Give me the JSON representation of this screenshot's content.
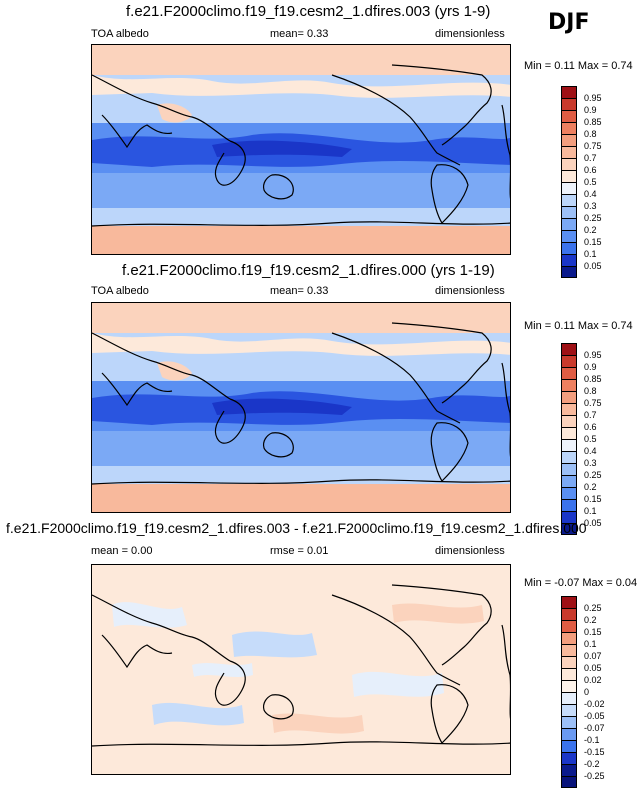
{
  "season": "DJF",
  "palette_abs": [
    "#0a1a8c",
    "#1a36c8",
    "#2a55e0",
    "#3b73ec",
    "#5a8ff2",
    "#7ba9f5",
    "#9cc0f7",
    "#bcd6fa",
    "#d6e6fb",
    "#eef3fb",
    "#fde9da",
    "#fbd3bd",
    "#f8b99c",
    "#f39e7e",
    "#ee8060",
    "#e05d44",
    "#c93a2c",
    "#9e1015"
  ],
  "palette_diff": [
    "#0a1a8c",
    "#1a36c8",
    "#3b73ec",
    "#6a9af2",
    "#9cc0f7",
    "#c6dcfa",
    "#e6effb",
    "#fde9da",
    "#fbd3bd",
    "#f8b99c",
    "#f39e7e",
    "#e05d44",
    "#c93a2c",
    "#9e1015"
  ],
  "panels": [
    {
      "title": "f.e21.F2000climo.f19_f19.cesm2_1.dfires.003 (yrs 1-9)",
      "left_label": "TOA albedo",
      "center_label": "mean=  0.33",
      "right_label": "dimensionless",
      "minmax": "Min =  0.11 Max =  0.74",
      "levels": [
        "0.95",
        "0.9",
        "0.85",
        "0.8",
        "0.75",
        "0.7",
        "0.6",
        "0.5",
        "0.4",
        "0.3",
        "0.25",
        "0.2",
        "0.15",
        "0.1",
        "0.05"
      ],
      "kind": "abs"
    },
    {
      "title": "f.e21.F2000climo.f19_f19.cesm2_1.dfires.000 (yrs 1-19)",
      "left_label": "TOA albedo",
      "center_label": "mean=  0.33",
      "right_label": "dimensionless",
      "minmax": "Min =  0.11 Max =  0.74",
      "levels": [
        "0.95",
        "0.9",
        "0.85",
        "0.8",
        "0.75",
        "0.7",
        "0.6",
        "0.5",
        "0.4",
        "0.3",
        "0.25",
        "0.2",
        "0.15",
        "0.1",
        "0.05"
      ],
      "kind": "abs"
    },
    {
      "title": "f.e21.F2000climo.f19_f19.cesm2_1.dfires.003 - f.e21.F2000climo.f19_f19.cesm2_1.dfires.000",
      "left_label": "mean =  0.00",
      "center_label": "rmse =  0.01",
      "right_label": "dimensionless",
      "minmax": "Min =  -0.07 Max =  0.04",
      "levels": [
        "0.25",
        "0.2",
        "0.15",
        "0.1",
        "0.07",
        "0.05",
        "0.02",
        "0",
        "-0.02",
        "-0.05",
        "-0.07",
        "-0.1",
        "-0.15",
        "-0.2",
        "-0.25"
      ],
      "kind": "diff"
    }
  ]
}
